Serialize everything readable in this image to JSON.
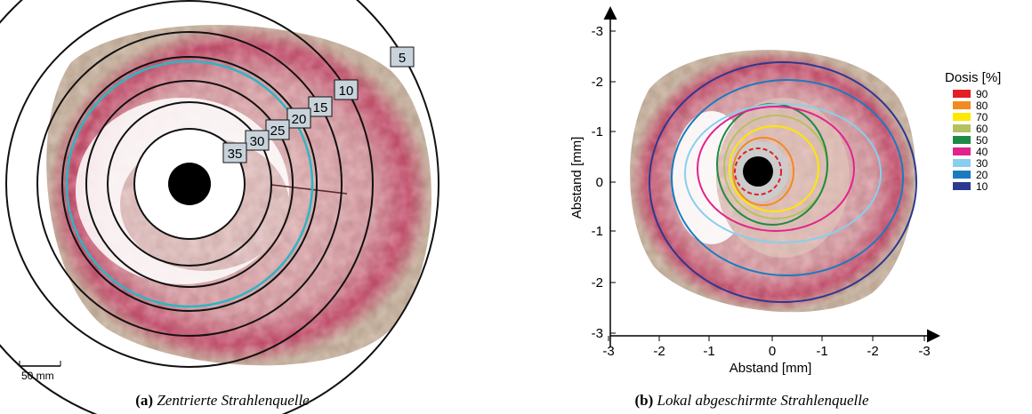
{
  "panel_a": {
    "isodose_labels": [
      "5",
      "10",
      "15",
      "20",
      "25",
      "30",
      "35"
    ],
    "scale_bar": "50 mm",
    "caption": {
      "label": "(a)",
      "text": "Zentrierte Strahlenquelle"
    }
  },
  "panel_b": {
    "x_axis": {
      "title": "Abstand [mm]",
      "ticks": [
        "-3",
        "-2",
        "-1",
        "0",
        "-1",
        "-2",
        "-3"
      ]
    },
    "y_axis": {
      "title": "Abstand [mm]",
      "ticks": [
        "-3",
        "-2",
        "-1",
        "0",
        "-1",
        "-2",
        "-3"
      ]
    },
    "legend": {
      "title": "Dosis [%]",
      "items": [
        {
          "label": "90",
          "color": "#e31e24"
        },
        {
          "label": "80",
          "color": "#f18a1f"
        },
        {
          "label": "70",
          "color": "#fde800"
        },
        {
          "label": "60",
          "color": "#b5c160"
        },
        {
          "label": "50",
          "color": "#1f8a45"
        },
        {
          "label": "40",
          "color": "#e2238c"
        },
        {
          "label": "30",
          "color": "#88cfef"
        },
        {
          "label": "20",
          "color": "#1a7bbf"
        },
        {
          "label": "10",
          "color": "#2b3990"
        }
      ]
    },
    "caption": {
      "label": "(b)",
      "text": "Lokal abgeschirmte Strahlenquelle"
    }
  }
}
